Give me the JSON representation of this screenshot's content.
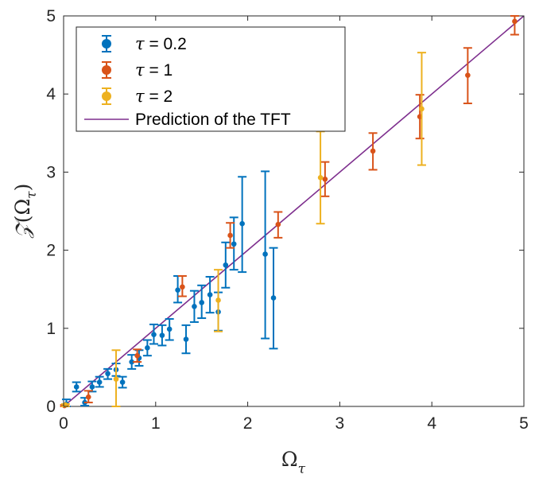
{
  "chart_data": {
    "type": "scatter",
    "xlabel_base": "Ω",
    "xlabel_sub": "τ",
    "ylabel_script": "𝒵",
    "ylabel_arg_base": "(Ω",
    "ylabel_arg_sub": "τ",
    "ylabel_close": ")",
    "xlim": [
      0,
      5
    ],
    "ylim": [
      0,
      5
    ],
    "xticks": [
      "0",
      "1",
      "2",
      "3",
      "4",
      "5"
    ],
    "yticks": [
      "0",
      "1",
      "2",
      "3",
      "4",
      "5"
    ],
    "grid": false,
    "legend_position": "top-left",
    "series": [
      {
        "name": "τ = 0.2",
        "legend_var": "τ",
        "legend_rest": " = 0.2",
        "color": "#0072BD",
        "points": [
          {
            "x": 0.03,
            "y": 0.03,
            "lo": 0.0,
            "hi": 0.09
          },
          {
            "x": 0.14,
            "y": 0.25,
            "lo": 0.19,
            "hi": 0.31
          },
          {
            "x": 0.23,
            "y": 0.05,
            "lo": 0.01,
            "hi": 0.11
          },
          {
            "x": 0.31,
            "y": 0.25,
            "lo": 0.19,
            "hi": 0.32
          },
          {
            "x": 0.39,
            "y": 0.31,
            "lo": 0.25,
            "hi": 0.38
          },
          {
            "x": 0.48,
            "y": 0.42,
            "lo": 0.35,
            "hi": 0.48
          },
          {
            "x": 0.57,
            "y": 0.47,
            "lo": 0.39,
            "hi": 0.55
          },
          {
            "x": 0.64,
            "y": 0.31,
            "lo": 0.24,
            "hi": 0.38
          },
          {
            "x": 0.74,
            "y": 0.57,
            "lo": 0.48,
            "hi": 0.66
          },
          {
            "x": 0.82,
            "y": 0.62,
            "lo": 0.52,
            "hi": 0.72
          },
          {
            "x": 0.91,
            "y": 0.75,
            "lo": 0.65,
            "hi": 0.85
          },
          {
            "x": 0.98,
            "y": 0.92,
            "lo": 0.8,
            "hi": 1.05
          },
          {
            "x": 1.07,
            "y": 0.91,
            "lo": 0.78,
            "hi": 1.04
          },
          {
            "x": 1.15,
            "y": 0.99,
            "lo": 0.85,
            "hi": 1.12
          },
          {
            "x": 1.24,
            "y": 1.49,
            "lo": 1.33,
            "hi": 1.67
          },
          {
            "x": 1.33,
            "y": 0.86,
            "lo": 0.68,
            "hi": 1.04
          },
          {
            "x": 1.42,
            "y": 1.28,
            "lo": 1.08,
            "hi": 1.48
          },
          {
            "x": 1.5,
            "y": 1.33,
            "lo": 1.13,
            "hi": 1.55
          },
          {
            "x": 1.59,
            "y": 1.43,
            "lo": 1.2,
            "hi": 1.66
          },
          {
            "x": 1.68,
            "y": 1.21,
            "lo": 0.97,
            "hi": 1.46
          },
          {
            "x": 1.76,
            "y": 1.81,
            "lo": 1.52,
            "hi": 2.1
          },
          {
            "x": 1.85,
            "y": 2.08,
            "lo": 1.75,
            "hi": 2.42
          },
          {
            "x": 1.94,
            "y": 2.34,
            "lo": 1.72,
            "hi": 2.94
          },
          {
            "x": 2.19,
            "y": 1.95,
            "lo": 0.87,
            "hi": 3.01
          },
          {
            "x": 2.28,
            "y": 1.39,
            "lo": 0.74,
            "hi": 2.03
          }
        ]
      },
      {
        "name": "τ = 1",
        "legend_var": "τ",
        "legend_rest": " = 1",
        "color": "#D95319",
        "points": [
          {
            "x": 0.01,
            "y": 0.01,
            "lo": 0.0,
            "hi": 0.02
          },
          {
            "x": 0.27,
            "y": 0.12,
            "lo": 0.05,
            "hi": 0.2
          },
          {
            "x": 0.8,
            "y": 0.65,
            "lo": 0.57,
            "hi": 0.73
          },
          {
            "x": 1.29,
            "y": 1.53,
            "lo": 1.41,
            "hi": 1.67
          },
          {
            "x": 1.81,
            "y": 2.19,
            "lo": 2.03,
            "hi": 2.35
          },
          {
            "x": 2.33,
            "y": 2.33,
            "lo": 2.16,
            "hi": 2.49
          },
          {
            "x": 2.84,
            "y": 2.91,
            "lo": 2.69,
            "hi": 3.13
          },
          {
            "x": 3.36,
            "y": 3.27,
            "lo": 3.03,
            "hi": 3.5
          },
          {
            "x": 3.87,
            "y": 3.71,
            "lo": 3.43,
            "hi": 3.99
          },
          {
            "x": 4.39,
            "y": 4.24,
            "lo": 3.88,
            "hi": 4.59
          },
          {
            "x": 4.9,
            "y": 4.93,
            "lo": 4.76,
            "hi": 5.0
          }
        ]
      },
      {
        "name": "τ = 2",
        "legend_var": "τ",
        "legend_rest": " = 2",
        "color": "#EDB120",
        "points": [
          {
            "x": 0.02,
            "y": 0.02,
            "lo": 0.0,
            "hi": 0.03
          },
          {
            "x": 0.57,
            "y": 0.35,
            "lo": 0.0,
            "hi": 0.72
          },
          {
            "x": 1.68,
            "y": 1.36,
            "lo": 0.96,
            "hi": 1.75
          },
          {
            "x": 2.79,
            "y": 2.93,
            "lo": 2.34,
            "hi": 3.52
          },
          {
            "x": 3.89,
            "y": 3.81,
            "lo": 3.09,
            "hi": 4.53
          }
        ]
      }
    ],
    "prediction": {
      "name": "Prediction of the TFT",
      "color": "#7E2F8E",
      "x": [
        0,
        5
      ],
      "y": [
        0,
        5
      ]
    }
  }
}
